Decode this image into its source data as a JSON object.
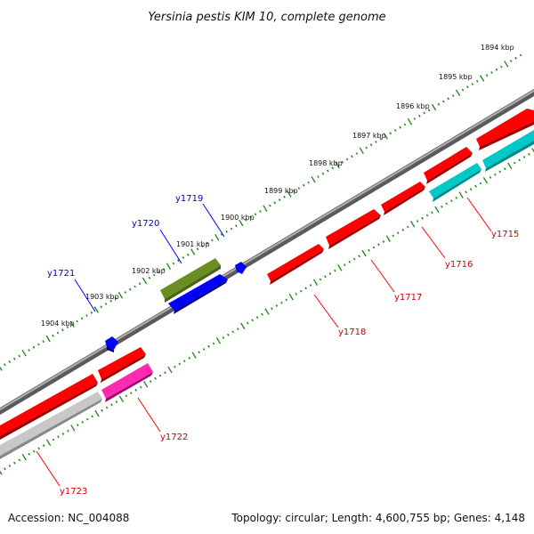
{
  "title": "Yersinia pestis KIM 10, complete genome",
  "footer": {
    "accession": "Accession: NC_004088",
    "summary": "Topology: circular; Length: 4,600,755 bp; Genes: 4,148"
  },
  "colors": {
    "backbone": "#7b7b7b",
    "tick": "#2a8a22",
    "gene_red": "#ff0000",
    "gene_blue": "#0000ff",
    "gene_olive": "#6b8e23",
    "gene_cyan": "#00c8c8",
    "gene_pink": "#ff3ab0",
    "gene_gray": "#c0c0c0",
    "label_red": "#cc0000",
    "label_blue": "#0000cc"
  },
  "scale_ticks": [
    "1894 kbp",
    "1895 kbp",
    "1896 kbp",
    "1897 kbp",
    "1898 kbp",
    "1899 kbp",
    "1900 kbp",
    "1901 kbp",
    "1902 kbp",
    "1903 kbp",
    "1904 kbp"
  ],
  "genes": [
    {
      "name": "y1715",
      "strand": "reverse",
      "track": "cds",
      "color": "gene_cyan",
      "label_color": "label_red"
    },
    {
      "name": "y1716",
      "strand": "forward",
      "track": "gene",
      "color": "gene_red",
      "label_color": "label_red"
    },
    {
      "name": "y1717",
      "strand": "forward",
      "track": "gene",
      "color": "gene_red",
      "label_color": "label_red"
    },
    {
      "name": "y1718",
      "strand": "forward",
      "track": "gene",
      "color": "gene_red",
      "label_color": "label_red"
    },
    {
      "name": "y1719",
      "strand": "forward",
      "track": "outer",
      "color": "gene_blue",
      "label_color": "label_blue"
    },
    {
      "name": "y1720",
      "strand": "forward",
      "track": "outer",
      "color": "gene_blue",
      "label_color": "label_blue"
    },
    {
      "name": "y1721",
      "strand": "forward",
      "track": "outer",
      "color": "gene_blue",
      "label_color": "label_blue"
    },
    {
      "name": "y1722",
      "strand": "reverse",
      "track": "cds",
      "color": "gene_pink",
      "label_color": "label_red"
    },
    {
      "name": "y1723",
      "strand": "reverse",
      "track": "cds",
      "color": "gene_gray",
      "label_color": "label_red"
    }
  ]
}
